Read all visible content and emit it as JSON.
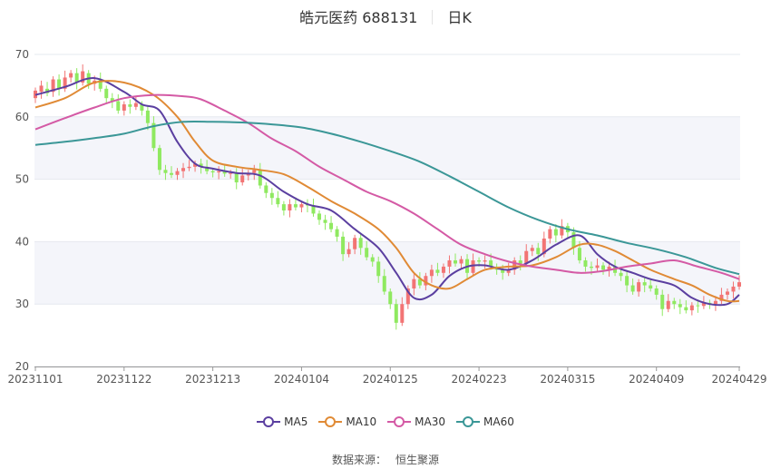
{
  "header": {
    "stock": "皓元医药 688131",
    "period": "日K"
  },
  "source": {
    "label": "数据来源：",
    "provider": "恒生聚源"
  },
  "colors": {
    "up": "#f27474",
    "down": "#8fe960",
    "MA5": "#5b3fa0",
    "MA10": "#e08a35",
    "MA30": "#d45aa5",
    "MA60": "#3b9797",
    "band": "#f4f5fa",
    "grid": "#e6e8ef"
  },
  "chart_data": {
    "type": "candlestick",
    "title": "皓元医药 688131",
    "ylim": [
      20,
      70
    ],
    "yticks": [
      20,
      30,
      40,
      50,
      60,
      70
    ],
    "xticks": [
      "20231101",
      "20231122",
      "20231213",
      "20240104",
      "20240125",
      "20240223",
      "20240315",
      "20240409",
      "20240429"
    ],
    "trading_days": 120,
    "xtick_day_index": [
      0,
      15,
      30,
      45,
      60,
      75,
      90,
      105,
      119
    ],
    "candles_approx": [
      [
        63.0,
        64.2
      ],
      [
        64.0,
        65.0
      ],
      [
        64.5,
        63.8
      ],
      [
        64.0,
        66.0
      ],
      [
        66.0,
        64.5
      ],
      [
        64.5,
        66.3
      ],
      [
        66.3,
        67.0
      ],
      [
        67.0,
        65.5
      ],
      [
        65.5,
        67.3
      ],
      [
        67.0,
        65.3
      ],
      [
        65.3,
        65.8
      ],
      [
        66.0,
        64.5
      ],
      [
        64.5,
        63.0
      ],
      [
        63.0,
        62.5
      ],
      [
        62.5,
        61.0
      ],
      [
        61.0,
        62.0
      ],
      [
        62.0,
        61.6
      ],
      [
        61.6,
        62.2
      ],
      [
        62.0,
        61.0
      ],
      [
        61.0,
        59.0
      ],
      [
        59.0,
        55.0
      ],
      [
        55.0,
        51.5
      ],
      [
        51.5,
        51.0
      ],
      [
        51.0,
        50.7
      ],
      [
        50.7,
        51.3
      ],
      [
        51.3,
        51.8
      ],
      [
        51.8,
        52.0
      ],
      [
        52.0,
        52.5
      ],
      [
        52.5,
        52.0
      ],
      [
        52.0,
        51.3
      ],
      [
        51.3,
        51.1
      ],
      [
        51.1,
        51.3
      ],
      [
        51.3,
        50.9
      ],
      [
        50.9,
        51.0
      ],
      [
        51.0,
        49.5
      ],
      [
        49.5,
        50.6
      ],
      [
        50.6,
        51.0
      ],
      [
        51.0,
        51.5
      ],
      [
        51.5,
        49.0
      ],
      [
        49.0,
        47.8
      ],
      [
        47.8,
        47.0
      ],
      [
        47.0,
        46.0
      ],
      [
        46.0,
        45.0
      ],
      [
        45.0,
        46.0
      ],
      [
        46.0,
        45.5
      ],
      [
        45.5,
        46.0
      ],
      [
        46.0,
        45.8
      ],
      [
        45.8,
        44.5
      ],
      [
        44.5,
        43.5
      ],
      [
        43.5,
        43.0
      ],
      [
        43.0,
        42.0
      ],
      [
        42.0,
        40.8
      ],
      [
        40.8,
        38.0
      ],
      [
        38.0,
        38.8
      ],
      [
        38.8,
        40.6
      ],
      [
        40.6,
        39.0
      ],
      [
        39.0,
        37.5
      ],
      [
        37.5,
        36.8
      ],
      [
        36.8,
        34.5
      ],
      [
        34.5,
        32.0
      ],
      [
        32.0,
        30.0
      ],
      [
        30.0,
        27.0
      ],
      [
        27.0,
        30.0
      ],
      [
        30.0,
        32.5
      ],
      [
        32.5,
        34.0
      ],
      [
        34.0,
        33.0
      ],
      [
        33.0,
        34.5
      ],
      [
        34.5,
        35.5
      ],
      [
        35.5,
        35.0
      ],
      [
        35.0,
        36.0
      ],
      [
        36.0,
        37.0
      ],
      [
        37.0,
        36.5
      ],
      [
        36.5,
        37.2
      ],
      [
        37.2,
        35.0
      ],
      [
        35.0,
        37.0
      ],
      [
        37.0,
        36.8
      ],
      [
        36.8,
        37.0
      ],
      [
        37.0,
        36.0
      ],
      [
        36.0,
        35.5
      ],
      [
        35.5,
        35.0
      ],
      [
        35.0,
        35.5
      ],
      [
        35.5,
        37.0
      ],
      [
        37.0,
        36.5
      ],
      [
        36.5,
        38.5
      ],
      [
        38.5,
        39.0
      ],
      [
        39.0,
        38.0
      ],
      [
        38.0,
        40.5
      ],
      [
        40.5,
        42.0
      ],
      [
        42.0,
        41.0
      ],
      [
        41.0,
        42.5
      ],
      [
        42.5,
        41.5
      ],
      [
        41.5,
        39.0
      ],
      [
        39.0,
        37.0
      ],
      [
        37.0,
        36.0
      ],
      [
        36.0,
        35.8
      ],
      [
        35.8,
        36.2
      ],
      [
        36.2,
        35.5
      ],
      [
        35.5,
        36.0
      ],
      [
        36.0,
        35.0
      ],
      [
        35.0,
        34.5
      ],
      [
        34.5,
        33.0
      ],
      [
        33.0,
        32.0
      ],
      [
        32.0,
        33.5
      ],
      [
        33.5,
        33.0
      ],
      [
        33.0,
        32.5
      ],
      [
        32.5,
        31.5
      ],
      [
        31.5,
        29.2
      ],
      [
        29.2,
        30.5
      ],
      [
        30.5,
        30.0
      ],
      [
        30.0,
        29.5
      ],
      [
        29.5,
        29.0
      ],
      [
        29.0,
        29.8
      ],
      [
        29.8,
        29.7
      ],
      [
        29.7,
        30.2
      ],
      [
        30.2,
        30.0
      ],
      [
        30.0,
        30.5
      ],
      [
        30.5,
        31.5
      ],
      [
        31.5,
        32.0
      ],
      [
        32.0,
        32.8
      ],
      [
        32.8,
        33.5
      ]
    ],
    "series": [
      {
        "name": "MA5",
        "points": [
          [
            0,
            63.5
          ],
          [
            5,
            64.8
          ],
          [
            10,
            66.2
          ],
          [
            15,
            64.0
          ],
          [
            18,
            62.0
          ],
          [
            21,
            61.0
          ],
          [
            24,
            56.0
          ],
          [
            27,
            52.5
          ],
          [
            30,
            51.7
          ],
          [
            34,
            51.0
          ],
          [
            38,
            50.6
          ],
          [
            42,
            48.0
          ],
          [
            46,
            46.0
          ],
          [
            50,
            45.0
          ],
          [
            54,
            42.0
          ],
          [
            58,
            39.0
          ],
          [
            61,
            35.0
          ],
          [
            64,
            31.0
          ],
          [
            67,
            31.5
          ],
          [
            70,
            34.5
          ],
          [
            73,
            36.0
          ],
          [
            76,
            36.2
          ],
          [
            80,
            35.5
          ],
          [
            84,
            37.0
          ],
          [
            88,
            39.5
          ],
          [
            92,
            41.0
          ],
          [
            95,
            38.0
          ],
          [
            98,
            36.0
          ],
          [
            101,
            35.0
          ],
          [
            104,
            34.0
          ],
          [
            108,
            33.0
          ],
          [
            111,
            31.0
          ],
          [
            114,
            30.0
          ],
          [
            117,
            30.0
          ],
          [
            119,
            31.5
          ]
        ]
      },
      {
        "name": "MA10",
        "points": [
          [
            0,
            61.5
          ],
          [
            5,
            63.0
          ],
          [
            10,
            65.5
          ],
          [
            15,
            65.5
          ],
          [
            20,
            63.5
          ],
          [
            24,
            60.0
          ],
          [
            27,
            56.0
          ],
          [
            30,
            53.0
          ],
          [
            34,
            52.0
          ],
          [
            38,
            51.5
          ],
          [
            42,
            50.8
          ],
          [
            46,
            48.8
          ],
          [
            50,
            46.5
          ],
          [
            54,
            44.5
          ],
          [
            58,
            42.0
          ],
          [
            61,
            39.0
          ],
          [
            64,
            35.0
          ],
          [
            67,
            33.0
          ],
          [
            70,
            32.5
          ],
          [
            73,
            34.0
          ],
          [
            76,
            35.5
          ],
          [
            80,
            36.0
          ],
          [
            84,
            36.2
          ],
          [
            88,
            37.5
          ],
          [
            92,
            39.5
          ],
          [
            95,
            39.5
          ],
          [
            98,
            38.5
          ],
          [
            101,
            37.0
          ],
          [
            104,
            35.5
          ],
          [
            108,
            34.0
          ],
          [
            111,
            33.0
          ],
          [
            114,
            31.5
          ],
          [
            117,
            30.5
          ],
          [
            119,
            30.5
          ]
        ]
      },
      {
        "name": "MA30",
        "points": [
          [
            0,
            58.0
          ],
          [
            5,
            59.8
          ],
          [
            10,
            61.5
          ],
          [
            15,
            63.0
          ],
          [
            20,
            63.5
          ],
          [
            25,
            63.3
          ],
          [
            28,
            62.8
          ],
          [
            32,
            61.0
          ],
          [
            36,
            59.0
          ],
          [
            40,
            56.5
          ],
          [
            44,
            54.5
          ],
          [
            48,
            52.0
          ],
          [
            52,
            50.0
          ],
          [
            56,
            48.0
          ],
          [
            60,
            46.5
          ],
          [
            64,
            44.5
          ],
          [
            68,
            42.0
          ],
          [
            72,
            39.5
          ],
          [
            76,
            38.0
          ],
          [
            80,
            36.8
          ],
          [
            84,
            36.0
          ],
          [
            88,
            35.5
          ],
          [
            92,
            35.0
          ],
          [
            96,
            35.3
          ],
          [
            100,
            36.0
          ],
          [
            104,
            36.5
          ],
          [
            108,
            37.0
          ],
          [
            112,
            36.0
          ],
          [
            116,
            35.0
          ],
          [
            119,
            34.0
          ]
        ]
      },
      {
        "name": "MA60",
        "points": [
          [
            0,
            55.5
          ],
          [
            5,
            56.0
          ],
          [
            10,
            56.6
          ],
          [
            15,
            57.3
          ],
          [
            20,
            58.5
          ],
          [
            25,
            59.2
          ],
          [
            30,
            59.2
          ],
          [
            35,
            59.1
          ],
          [
            40,
            58.8
          ],
          [
            45,
            58.3
          ],
          [
            50,
            57.3
          ],
          [
            55,
            56.0
          ],
          [
            60,
            54.5
          ],
          [
            65,
            52.8
          ],
          [
            70,
            50.5
          ],
          [
            75,
            48.0
          ],
          [
            80,
            45.5
          ],
          [
            85,
            43.5
          ],
          [
            90,
            42.0
          ],
          [
            95,
            41.0
          ],
          [
            100,
            39.8
          ],
          [
            105,
            38.8
          ],
          [
            110,
            37.5
          ],
          [
            115,
            35.8
          ],
          [
            119,
            34.8
          ]
        ]
      }
    ]
  }
}
